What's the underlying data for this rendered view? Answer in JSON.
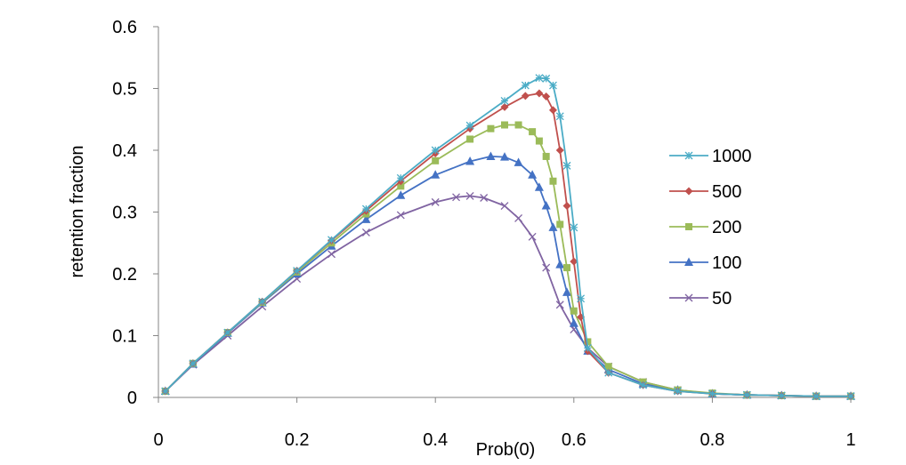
{
  "chart_data": {
    "type": "line",
    "title": "",
    "xlabel": "Prob(0)",
    "ylabel": "retention fraction",
    "xlim": [
      0,
      1
    ],
    "ylim": [
      0,
      0.6
    ],
    "x_ticks": [
      "0",
      "0.2",
      "0.4",
      "0.6",
      "0.8",
      "1"
    ],
    "y_ticks": [
      "0",
      "0.1",
      "0.2",
      "0.3",
      "0.4",
      "0.5",
      "0.6"
    ],
    "grid": false,
    "legend_position": "right",
    "series": [
      {
        "name": "1000",
        "color": "#4BACC6",
        "marker": "star",
        "points": [
          [
            0.01,
            0.01
          ],
          [
            0.05,
            0.055
          ],
          [
            0.1,
            0.105
          ],
          [
            0.15,
            0.155
          ],
          [
            0.2,
            0.205
          ],
          [
            0.25,
            0.255
          ],
          [
            0.3,
            0.305
          ],
          [
            0.35,
            0.355
          ],
          [
            0.4,
            0.4
          ],
          [
            0.45,
            0.44
          ],
          [
            0.5,
            0.48
          ],
          [
            0.53,
            0.505
          ],
          [
            0.55,
            0.517
          ],
          [
            0.56,
            0.516
          ],
          [
            0.57,
            0.505
          ],
          [
            0.58,
            0.455
          ],
          [
            0.59,
            0.375
          ],
          [
            0.6,
            0.275
          ],
          [
            0.61,
            0.16
          ],
          [
            0.62,
            0.08
          ],
          [
            0.65,
            0.04
          ],
          [
            0.7,
            0.02
          ],
          [
            0.75,
            0.01
          ],
          [
            0.8,
            0.006
          ],
          [
            0.85,
            0.004
          ],
          [
            0.9,
            0.003
          ],
          [
            0.95,
            0.002
          ],
          [
            1.0,
            0.002
          ]
        ]
      },
      {
        "name": "500",
        "color": "#C0504D",
        "marker": "diamond",
        "points": [
          [
            0.01,
            0.01
          ],
          [
            0.05,
            0.055
          ],
          [
            0.1,
            0.105
          ],
          [
            0.15,
            0.155
          ],
          [
            0.2,
            0.205
          ],
          [
            0.25,
            0.254
          ],
          [
            0.3,
            0.302
          ],
          [
            0.35,
            0.35
          ],
          [
            0.4,
            0.395
          ],
          [
            0.45,
            0.435
          ],
          [
            0.5,
            0.47
          ],
          [
            0.53,
            0.488
          ],
          [
            0.55,
            0.492
          ],
          [
            0.56,
            0.487
          ],
          [
            0.57,
            0.465
          ],
          [
            0.58,
            0.4
          ],
          [
            0.59,
            0.31
          ],
          [
            0.6,
            0.22
          ],
          [
            0.61,
            0.13
          ],
          [
            0.62,
            0.075
          ],
          [
            0.65,
            0.04
          ],
          [
            0.7,
            0.02
          ],
          [
            0.75,
            0.01
          ],
          [
            0.8,
            0.006
          ],
          [
            0.85,
            0.004
          ],
          [
            0.9,
            0.003
          ],
          [
            0.95,
            0.002
          ],
          [
            1.0,
            0.002
          ]
        ]
      },
      {
        "name": "200",
        "color": "#9BBB59",
        "marker": "square",
        "points": [
          [
            0.01,
            0.01
          ],
          [
            0.05,
            0.055
          ],
          [
            0.1,
            0.105
          ],
          [
            0.15,
            0.154
          ],
          [
            0.2,
            0.203
          ],
          [
            0.25,
            0.25
          ],
          [
            0.3,
            0.297
          ],
          [
            0.35,
            0.342
          ],
          [
            0.4,
            0.383
          ],
          [
            0.45,
            0.418
          ],
          [
            0.48,
            0.435
          ],
          [
            0.5,
            0.441
          ],
          [
            0.52,
            0.441
          ],
          [
            0.54,
            0.43
          ],
          [
            0.55,
            0.415
          ],
          [
            0.56,
            0.39
          ],
          [
            0.57,
            0.35
          ],
          [
            0.58,
            0.28
          ],
          [
            0.59,
            0.21
          ],
          [
            0.6,
            0.14
          ],
          [
            0.62,
            0.09
          ],
          [
            0.65,
            0.05
          ],
          [
            0.7,
            0.025
          ],
          [
            0.75,
            0.012
          ],
          [
            0.8,
            0.007
          ],
          [
            0.85,
            0.004
          ],
          [
            0.9,
            0.003
          ],
          [
            0.95,
            0.002
          ],
          [
            1.0,
            0.002
          ]
        ]
      },
      {
        "name": "100",
        "color": "#4472C4",
        "marker": "triangle",
        "points": [
          [
            0.01,
            0.01
          ],
          [
            0.05,
            0.054
          ],
          [
            0.1,
            0.104
          ],
          [
            0.15,
            0.153
          ],
          [
            0.2,
            0.2
          ],
          [
            0.25,
            0.245
          ],
          [
            0.3,
            0.288
          ],
          [
            0.35,
            0.327
          ],
          [
            0.4,
            0.36
          ],
          [
            0.45,
            0.382
          ],
          [
            0.48,
            0.39
          ],
          [
            0.5,
            0.389
          ],
          [
            0.52,
            0.38
          ],
          [
            0.54,
            0.36
          ],
          [
            0.55,
            0.34
          ],
          [
            0.56,
            0.31
          ],
          [
            0.57,
            0.275
          ],
          [
            0.58,
            0.215
          ],
          [
            0.59,
            0.17
          ],
          [
            0.6,
            0.12
          ],
          [
            0.62,
            0.075
          ],
          [
            0.65,
            0.045
          ],
          [
            0.7,
            0.022
          ],
          [
            0.75,
            0.012
          ],
          [
            0.8,
            0.006
          ],
          [
            0.85,
            0.004
          ],
          [
            0.9,
            0.003
          ],
          [
            0.95,
            0.002
          ],
          [
            1.0,
            0.002
          ]
        ]
      },
      {
        "name": "50",
        "color": "#8064A2",
        "marker": "x",
        "points": [
          [
            0.01,
            0.01
          ],
          [
            0.05,
            0.053
          ],
          [
            0.1,
            0.1
          ],
          [
            0.15,
            0.147
          ],
          [
            0.2,
            0.192
          ],
          [
            0.25,
            0.232
          ],
          [
            0.3,
            0.267
          ],
          [
            0.35,
            0.295
          ],
          [
            0.4,
            0.316
          ],
          [
            0.43,
            0.324
          ],
          [
            0.45,
            0.326
          ],
          [
            0.47,
            0.323
          ],
          [
            0.5,
            0.31
          ],
          [
            0.52,
            0.29
          ],
          [
            0.54,
            0.26
          ],
          [
            0.56,
            0.21
          ],
          [
            0.58,
            0.15
          ],
          [
            0.6,
            0.11
          ],
          [
            0.62,
            0.08
          ],
          [
            0.65,
            0.05
          ],
          [
            0.7,
            0.025
          ],
          [
            0.75,
            0.012
          ],
          [
            0.8,
            0.006
          ],
          [
            0.85,
            0.004
          ],
          [
            0.9,
            0.003
          ],
          [
            0.95,
            0.002
          ],
          [
            1.0,
            0.002
          ]
        ]
      }
    ]
  }
}
